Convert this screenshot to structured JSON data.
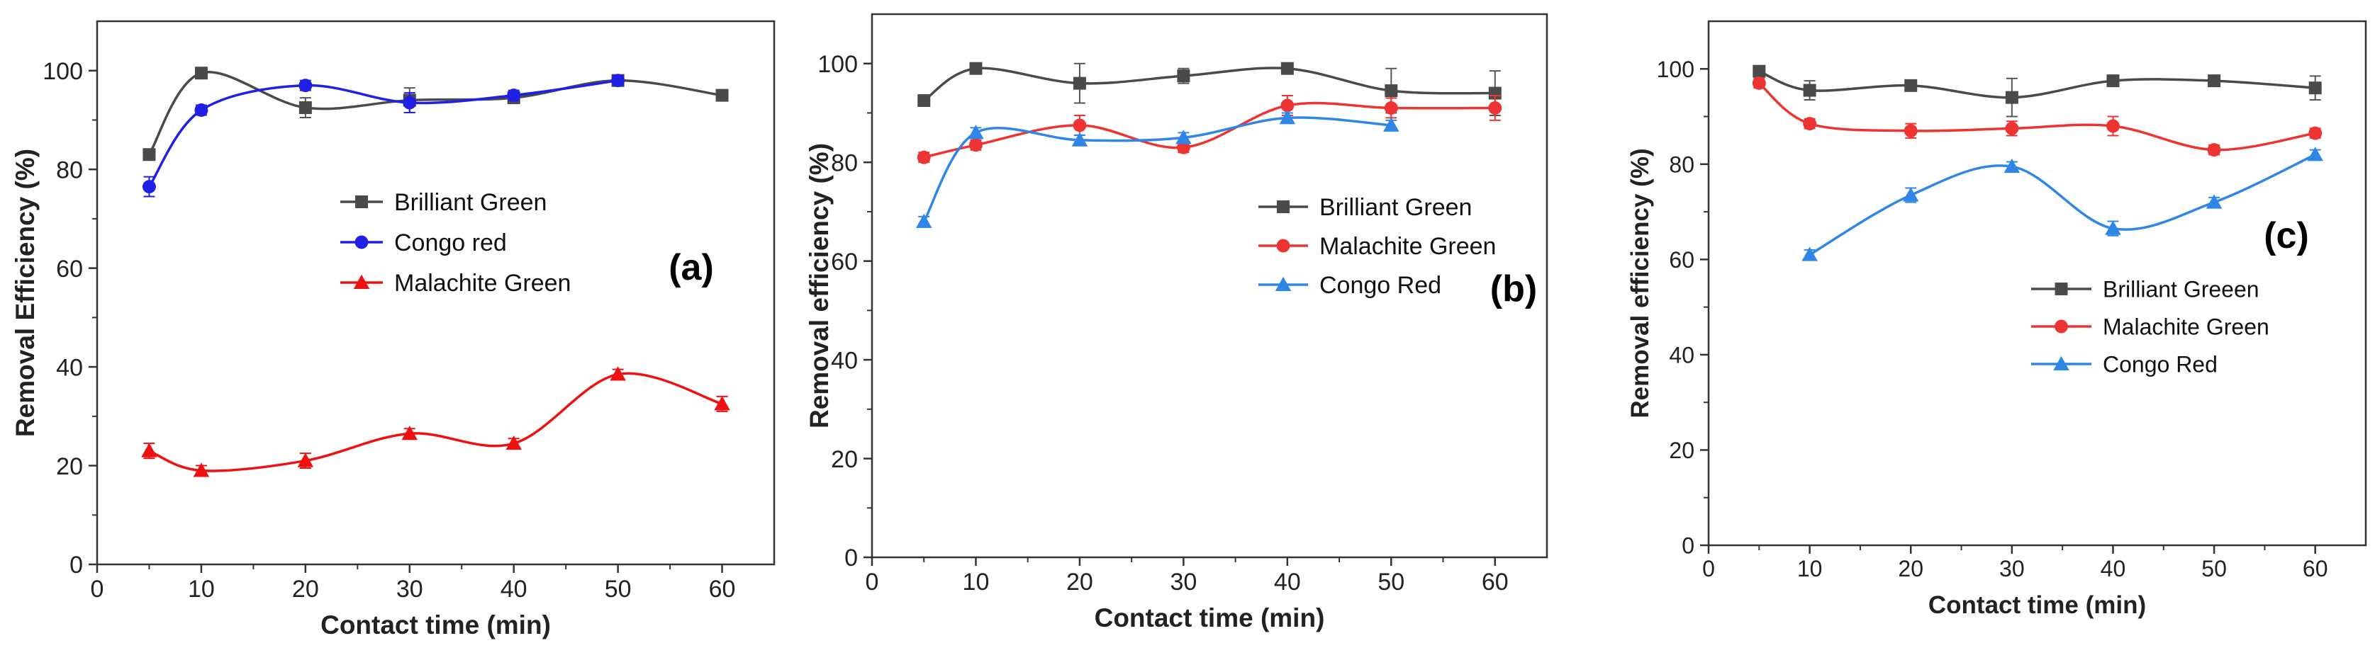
{
  "chart_data": [
    {
      "type": "line",
      "panel_label": "(a)",
      "xlabel": "Contact time (min)",
      "ylabel": "Removal Efficiency (%)",
      "xlim": [
        0,
        65
      ],
      "ylim": [
        0,
        110
      ],
      "xticks": [
        0,
        10,
        20,
        30,
        40,
        50,
        60
      ],
      "yticks": [
        0,
        20,
        40,
        60,
        80,
        100
      ],
      "xtick_labels": [
        "0",
        "10",
        "20",
        "30",
        "40",
        "50",
        "60"
      ],
      "ytick_labels": [
        "0",
        "20",
        "40",
        "60",
        "80",
        "100"
      ],
      "series": [
        {
          "name": "Brilliant Green",
          "marker": "square",
          "color": "#4a4a4a",
          "x": [
            5,
            10,
            20,
            30,
            40,
            50,
            60
          ],
          "y": [
            83,
            99.5,
            92.5,
            94,
            94.5,
            98,
            95
          ],
          "err": [
            1,
            1,
            2,
            2.5,
            1,
            1,
            1
          ]
        },
        {
          "name": "Congo red",
          "marker": "circle",
          "color": "#1f1fe6",
          "x": [
            5,
            10,
            20,
            30,
            40,
            50
          ],
          "y": [
            76.5,
            92,
            97,
            93.5,
            95,
            98
          ],
          "err": [
            2,
            1,
            1,
            2,
            1,
            1
          ]
        },
        {
          "name": "Malachite Green",
          "marker": "triangle",
          "color": "#ee1111",
          "x": [
            5,
            10,
            20,
            30,
            40,
            50,
            60
          ],
          "y": [
            23,
            19,
            21,
            26.5,
            24.5,
            38.5,
            32.5
          ],
          "err": [
            1.5,
            1,
            1.5,
            1,
            1,
            1,
            1.5
          ]
        }
      ]
    },
    {
      "type": "line",
      "panel_label": "(b)",
      "xlabel": "Contact time (min)",
      "ylabel": "Removal efficiency (%)",
      "xlim": [
        0,
        65
      ],
      "ylim": [
        0,
        110
      ],
      "xticks": [
        0,
        10,
        20,
        30,
        40,
        50,
        60
      ],
      "yticks": [
        0,
        20,
        40,
        60,
        80,
        100
      ],
      "xtick_labels": [
        "0",
        "10",
        "20",
        "30",
        "40",
        "50",
        "60"
      ],
      "ytick_labels": [
        "0",
        "20",
        "40",
        "60",
        "80",
        "100"
      ],
      "series": [
        {
          "name": "Brilliant Green",
          "marker": "square",
          "color": "#4a4a4a",
          "x": [
            5,
            10,
            20,
            30,
            40,
            50,
            60
          ],
          "y": [
            92.5,
            99,
            96,
            97.5,
            99,
            94.5,
            94
          ],
          "err": [
            1,
            1,
            4,
            1.5,
            1,
            4.5,
            4.5
          ]
        },
        {
          "name": "Malachite Green",
          "marker": "circle",
          "color": "#ee3333",
          "x": [
            5,
            10,
            20,
            30,
            40,
            50,
            60
          ],
          "y": [
            81,
            83.5,
            87.5,
            83,
            91.5,
            91,
            91
          ],
          "err": [
            1,
            1,
            2,
            1,
            2,
            2,
            2.5
          ]
        },
        {
          "name": "Congo Red",
          "marker": "triangle",
          "color": "#2f86e6",
          "x": [
            5,
            10,
            20,
            30,
            40,
            50
          ],
          "y": [
            68,
            86,
            84.5,
            85,
            89,
            87.5
          ],
          "err": [
            1,
            1,
            1,
            1,
            1,
            1
          ]
        }
      ]
    },
    {
      "type": "line",
      "panel_label": "(c)",
      "xlabel": "Contact time (min)",
      "ylabel": "Removal efficiency (%)",
      "xlim": [
        0,
        65
      ],
      "ylim": [
        0,
        110
      ],
      "xticks": [
        0,
        10,
        20,
        30,
        40,
        50,
        60
      ],
      "yticks": [
        0,
        20,
        40,
        60,
        80,
        100
      ],
      "xtick_labels": [
        "0",
        "10",
        "20",
        "30",
        "40",
        "50",
        "60"
      ],
      "ytick_labels": [
        "0",
        "20",
        "40",
        "60",
        "80",
        "100"
      ],
      "series": [
        {
          "name": "Brilliant Greeen",
          "marker": "square",
          "color": "#4a4a4a",
          "x": [
            5,
            10,
            20,
            30,
            40,
            50,
            60
          ],
          "y": [
            99.5,
            95.5,
            96.5,
            94,
            97.5,
            97.5,
            96
          ],
          "err": [
            1,
            2,
            1,
            4,
            1,
            1,
            2.5
          ]
        },
        {
          "name": "Malachite Green",
          "marker": "circle",
          "color": "#ee3333",
          "x": [
            5,
            10,
            20,
            30,
            40,
            50,
            60
          ],
          "y": [
            97,
            88.5,
            87,
            87.5,
            88,
            83,
            86.5
          ],
          "err": [
            1,
            1,
            1.5,
            1.5,
            2,
            1,
            1
          ]
        },
        {
          "name": "Congo Red",
          "marker": "triangle",
          "color": "#2f86e6",
          "x": [
            10,
            20,
            30,
            40,
            50,
            60
          ],
          "y": [
            61,
            73.5,
            79.5,
            66.5,
            72,
            82
          ],
          "err": [
            1,
            1.5,
            1,
            1.5,
            1,
            1
          ]
        }
      ]
    }
  ]
}
